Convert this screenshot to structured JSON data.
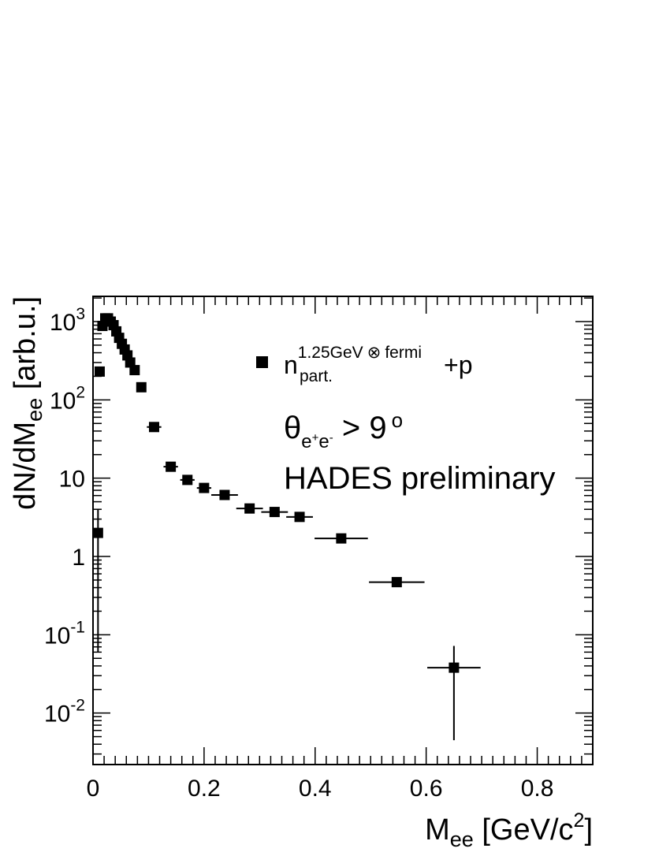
{
  "chart_data": {
    "type": "scatter",
    "xlabel": {
      "main": "M",
      "sub": "ee",
      "rest": " [GeV/c",
      "sup": "2",
      "end": "]"
    },
    "ylabel": {
      "pre": "dN/dM",
      "sub": "ee",
      "rest": " [arb.u.]"
    },
    "xlim": [
      0,
      0.9
    ],
    "ylim": [
      0.0022,
      2100
    ],
    "y_scale": "log",
    "grid": false,
    "legend_position": "top-right",
    "x_ticks": [
      {
        "value": 0,
        "label": "0"
      },
      {
        "value": 0.2,
        "label": "0.2"
      },
      {
        "value": 0.4,
        "label": "0.4"
      },
      {
        "value": 0.6,
        "label": "0.6"
      },
      {
        "value": 0.8,
        "label": "0.8"
      }
    ],
    "y_ticks": [
      {
        "value": 0.01,
        "base": "10",
        "exp": "-2"
      },
      {
        "value": 0.1,
        "base": "10",
        "exp": "-1"
      },
      {
        "value": 1,
        "base": "1",
        "exp": ""
      },
      {
        "value": 10,
        "base": "10",
        "exp": ""
      },
      {
        "value": 100,
        "base": "10",
        "exp": "2"
      },
      {
        "value": 1000,
        "base": "10",
        "exp": "3"
      }
    ],
    "legend": {
      "main": "n",
      "sup": "1.25GeV",
      "otimes": "⊗",
      "sup2": "fermi",
      "sub": "part.",
      "suffix": "+p"
    },
    "annotations": {
      "theta": "θ",
      "theta_sub_e1": "e",
      "theta_sub_plus": "+",
      "theta_sub_e2": "e",
      "theta_sub_minus": "-",
      "theta_rest": " > 9",
      "theta_degree": "o",
      "experiment": "HADES preliminary"
    },
    "series": [
      {
        "points": [
          {
            "x": 0.009,
            "y": 2.0,
            "xerr": 0,
            "ylow": 0.06,
            "yhigh": 4.0
          },
          {
            "x": 0.012,
            "y": 230,
            "xerr": 0,
            "ylow": 230,
            "yhigh": 230
          },
          {
            "x": 0.017,
            "y": 880,
            "xerr": 0,
            "ylow": 880,
            "yhigh": 880
          },
          {
            "x": 0.022,
            "y": 1100,
            "xerr": 0,
            "ylow": 1100,
            "yhigh": 1100
          },
          {
            "x": 0.027,
            "y": 1100,
            "xerr": 0,
            "ylow": 1100,
            "yhigh": 1100
          },
          {
            "x": 0.032,
            "y": 1000,
            "xerr": 0,
            "ylow": 1000,
            "yhigh": 1000
          },
          {
            "x": 0.037,
            "y": 900,
            "xerr": 0,
            "ylow": 900,
            "yhigh": 900
          },
          {
            "x": 0.042,
            "y": 750,
            "xerr": 0,
            "ylow": 750,
            "yhigh": 750
          },
          {
            "x": 0.047,
            "y": 620,
            "xerr": 0,
            "ylow": 620,
            "yhigh": 620
          },
          {
            "x": 0.052,
            "y": 520,
            "xerr": 0,
            "ylow": 520,
            "yhigh": 520
          },
          {
            "x": 0.057,
            "y": 440,
            "xerr": 0,
            "ylow": 440,
            "yhigh": 440
          },
          {
            "x": 0.062,
            "y": 370,
            "xerr": 0,
            "ylow": 370,
            "yhigh": 370
          },
          {
            "x": 0.067,
            "y": 300,
            "xerr": 0,
            "ylow": 300,
            "yhigh": 300
          },
          {
            "x": 0.075,
            "y": 240,
            "xerr": 0,
            "ylow": 240,
            "yhigh": 240
          },
          {
            "x": 0.087,
            "y": 145,
            "xerr": 0,
            "ylow": 145,
            "yhigh": 145
          },
          {
            "x": 0.11,
            "y": 45,
            "xerr": 0.013,
            "ylow": 45,
            "yhigh": 45
          },
          {
            "x": 0.14,
            "y": 14,
            "xerr": 0.013,
            "ylow": 14,
            "yhigh": 14
          },
          {
            "x": 0.17,
            "y": 9.5,
            "xerr": 0.013,
            "ylow": 9.5,
            "yhigh": 9.5
          },
          {
            "x": 0.2,
            "y": 7.5,
            "xerr": 0.013,
            "ylow": 7.5,
            "yhigh": 7.5
          },
          {
            "x": 0.237,
            "y": 6.1,
            "xerr": 0.024,
            "ylow": 6.1,
            "yhigh": 6.1
          },
          {
            "x": 0.282,
            "y": 4.1,
            "xerr": 0.024,
            "ylow": 4.1,
            "yhigh": 4.1
          },
          {
            "x": 0.327,
            "y": 3.7,
            "xerr": 0.024,
            "ylow": 3.7,
            "yhigh": 3.7
          },
          {
            "x": 0.372,
            "y": 3.2,
            "xerr": 0.024,
            "ylow": 3.2,
            "yhigh": 3.2
          },
          {
            "x": 0.447,
            "y": 1.7,
            "xerr": 0.048,
            "ylow": 1.7,
            "yhigh": 1.7
          },
          {
            "x": 0.547,
            "y": 0.47,
            "xerr": 0.05,
            "ylow": 0.44,
            "yhigh": 0.5
          },
          {
            "x": 0.65,
            "y": 0.038,
            "xerr": 0.048,
            "ylow": 0.0045,
            "yhigh": 0.072
          }
        ]
      }
    ]
  }
}
